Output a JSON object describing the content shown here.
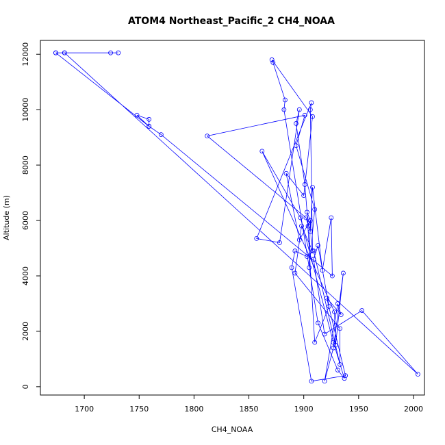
{
  "chart_data": {
    "type": "line",
    "title": "ATOM4 Northeast_Pacific_2 CH4_NOAA",
    "xlabel": "CH4_NOAA",
    "ylabel": "Altitude (m)",
    "xlim": [
      1660,
      2010
    ],
    "ylim": [
      -300,
      12500
    ],
    "x_ticks": [
      1700,
      1750,
      1800,
      1850,
      1900,
      1950,
      2000
    ],
    "y_ticks": [
      0,
      2000,
      4000,
      6000,
      8000,
      10000,
      12000
    ],
    "grid": false,
    "markers": "open-circle",
    "color": "#0000ff",
    "series": [
      {
        "x": [
          1674,
          1682,
          1724,
          1731,
          1682,
          2004,
          1953,
          1919,
          1909,
          1913,
          1923,
          1910,
          1903,
          1906,
          1896,
          1884,
          1900,
          1908,
          1871,
          1872,
          1883,
          1882,
          1913,
          1931,
          1937,
          1927,
          1897,
          1862,
          1928,
          1929,
          1936,
          1927,
          1919,
          1931,
          1934,
          1921,
          1938,
          1907,
          1889,
          1892,
          1903,
          1909,
          1933,
          1933,
          1892,
          1898,
          1908,
          1906,
          1907,
          1857,
          1878,
          1896,
          1893,
          1901,
          1904,
          1906,
          1905,
          1910,
          1893,
          1901,
          1812,
          1902,
          1906,
          1908,
          1917,
          1925,
          1926,
          1770,
          1759,
          1748,
          1759,
          1759,
          1674
        ],
        "y": [
          12050,
          12050,
          12050,
          12050,
          12050,
          450,
          2750,
          1900,
          4600,
          5100,
          2900,
          1600,
          6300,
          6000,
          5300,
          7700,
          6900,
          9750,
          11800,
          11700,
          10350,
          10000,
          2300,
          600,
          300,
          1600,
          6100,
          8500,
          2700,
          1500,
          4100,
          1400,
          200,
          3000,
          2600,
          3200,
          400,
          200,
          4300,
          4900,
          4700,
          4900,
          800,
          2100,
          4100,
          5800,
          4900,
          10000,
          10250,
          5350,
          5200,
          10000,
          9500,
          7300,
          5800,
          6000,
          4300,
          6400,
          8700,
          9800,
          9050,
          6100,
          5600,
          7200,
          4200,
          6100,
          4000,
          9100,
          9400,
          9800,
          9650,
          9400,
          12050
        ]
      }
    ]
  }
}
